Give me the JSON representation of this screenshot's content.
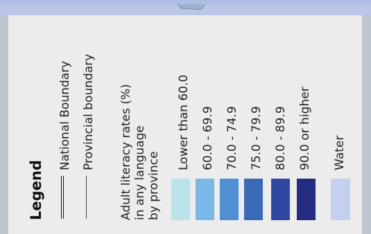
{
  "legend": {
    "title": "Legend",
    "boundaries": [
      {
        "label": "National Boundary",
        "style": "double-line"
      },
      {
        "label": "Provincial boundary",
        "style": "thin-line"
      }
    ],
    "category_heading": "Adult literacy rates (%) in any language by province",
    "category_heading_lines": [
      "Adult literacy rates (%)",
      "in any language",
      "by province"
    ],
    "classes": [
      {
        "label": "Lower than 60.0",
        "color": "#b9e3ea"
      },
      {
        "label": "60.0 - 69.9",
        "color": "#7ab6e6"
      },
      {
        "label": "70.0 - 74.9",
        "color": "#4f8fd2"
      },
      {
        "label": "75.0 - 79.9",
        "color": "#3a6ab7"
      },
      {
        "label": "80.0 - 89.9",
        "color": "#30479f"
      },
      {
        "label": "90.0 or higher",
        "color": "#232c80"
      }
    ],
    "water": {
      "label": "Water",
      "color": "#c3d1ee"
    }
  }
}
